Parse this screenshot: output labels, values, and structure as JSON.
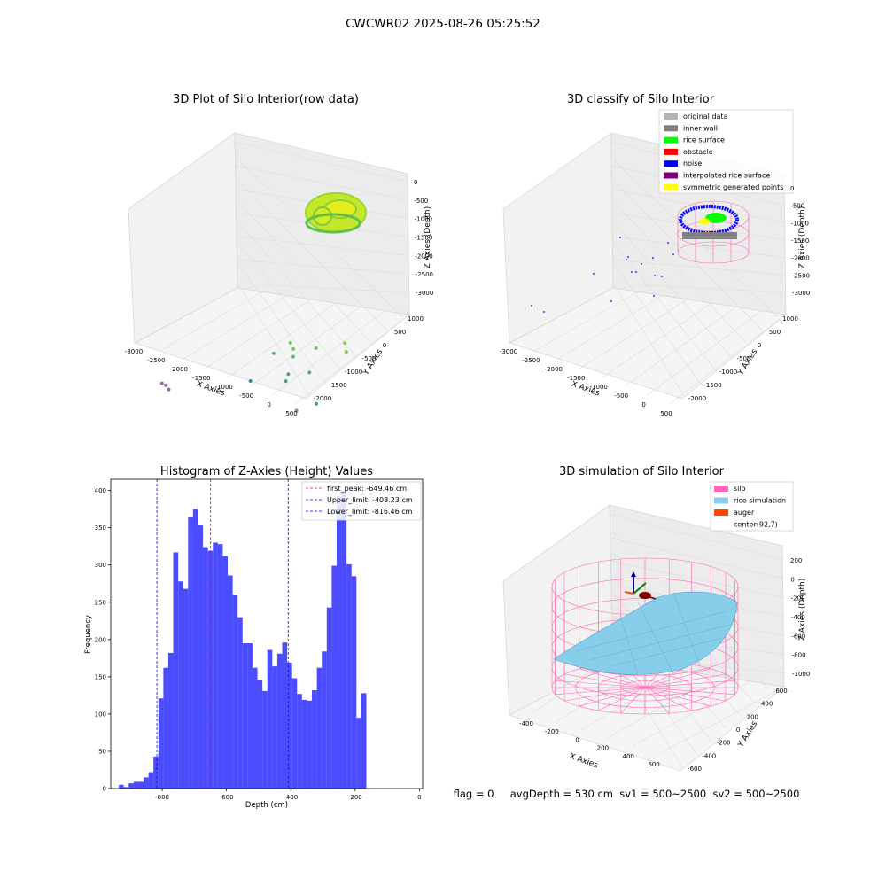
{
  "suptitle": "CWCWR02 2025-08-26 05:25:52",
  "status_line": "flag = 0     avgDepth = 530 cm  sv1 = 500~2500  sv2 = 500~2500",
  "chart_data": [
    {
      "type": "scatter3d",
      "title": "3D Plot of Silo Interior(row data)",
      "xlabel": "X Axies",
      "ylabel": "Y Axies",
      "zlabel": "Z Axies (Depth)",
      "xticks": [
        -3000,
        -2500,
        -2000,
        -1500,
        -1000,
        -500,
        0,
        500
      ],
      "yticks": [
        1000,
        500,
        0,
        -500,
        -1000,
        -1500,
        -2000
      ],
      "zticks": [
        0,
        -500,
        -1000,
        -1500,
        -2000,
        -2500,
        -3000
      ],
      "points": [
        {
          "x": -2800,
          "y": -1500,
          "z": -2800
        },
        {
          "x": -2750,
          "y": -1450,
          "z": -2850
        },
        {
          "x": -2650,
          "y": -1500,
          "z": -2900
        },
        {
          "x": -1600,
          "y": -400,
          "z": -2650
        },
        {
          "x": -1500,
          "y": 200,
          "z": -2100
        },
        {
          "x": -1200,
          "y": 300,
          "z": -1700
        },
        {
          "x": -1100,
          "y": 250,
          "z": -1800
        },
        {
          "x": -1000,
          "y": 100,
          "z": -1900
        },
        {
          "x": -900,
          "y": -200,
          "z": -2200
        },
        {
          "x": -850,
          "y": -350,
          "z": -2300
        },
        {
          "x": -700,
          "y": 400,
          "z": -1650
        },
        {
          "x": -500,
          "y": -100,
          "z": -2000
        },
        {
          "x": -200,
          "y": 600,
          "z": -1350
        },
        {
          "x": -100,
          "y": 500,
          "z": -1500
        },
        {
          "x": -300,
          "y": -800,
          "z": -2650
        },
        {
          "x": 0,
          "y": -600,
          "z": -2400
        }
      ]
    },
    {
      "type": "scatter3d",
      "title": "3D classify of Silo Interior",
      "xlabel": "X Axies",
      "ylabel": "Y Axies",
      "zlabel": "Z Axies (Depth)",
      "xticks": [
        -3000,
        -2500,
        -2000,
        -1500,
        -1000,
        -500,
        0,
        500
      ],
      "yticks": [
        1000,
        500,
        0,
        -500,
        -1000,
        -1500,
        -2000
      ],
      "zticks": [
        0,
        -500,
        -1000,
        -1500,
        -2000,
        -2500,
        -3000
      ],
      "legend": [
        {
          "label": "original data",
          "color": "#b3b3b3"
        },
        {
          "label": "inner wall",
          "color": "#808080"
        },
        {
          "label": "rice surface",
          "color": "#00ff00"
        },
        {
          "label": "obstacle",
          "color": "#ff0000"
        },
        {
          "label": "noise",
          "color": "#0000ff"
        },
        {
          "label": "interpolated rice surface",
          "color": "#800080"
        },
        {
          "label": "symmetric generated points",
          "color": "#ffff00"
        }
      ]
    },
    {
      "type": "histogram",
      "title": "Histogram of Z-Axies (Height) Values",
      "xlabel": "Depth (cm)",
      "ylabel": "Frequency",
      "xlim": [
        -960,
        10
      ],
      "ylim": [
        0,
        415
      ],
      "xticks": [
        -800,
        -600,
        -400,
        -200,
        0
      ],
      "yticks": [
        0,
        50,
        100,
        150,
        200,
        250,
        300,
        350,
        400
      ],
      "bin_start": -935,
      "bin_width": 15.4,
      "counts": [
        5,
        2,
        7,
        9,
        9,
        15,
        22,
        43,
        121,
        162,
        182,
        317,
        278,
        268,
        364,
        375,
        354,
        324,
        319,
        330,
        328,
        312,
        286,
        260,
        230,
        195,
        195,
        162,
        146,
        131,
        186,
        164,
        181,
        196,
        169,
        148,
        127,
        119,
        118,
        132,
        162,
        184,
        243,
        299,
        392,
        399,
        301,
        285,
        95,
        128
      ],
      "bar_color": "#0000ff",
      "lines": [
        {
          "label": "first_peak: -649.46 cm",
          "x": -649.46,
          "color": "#ff0000"
        },
        {
          "label": "Upper_limit: -408.23 cm",
          "x": -408.23,
          "color": "#0000ff"
        },
        {
          "label": "Lower_limit: -816.46 cm",
          "x": -816.46,
          "color": "#0000ff"
        }
      ]
    },
    {
      "type": "surface3d",
      "title": "3D simulation of Silo Interior",
      "xlabel": "X Axies",
      "ylabel": "Y Axies",
      "zlabel": "Z Axies (Depth)",
      "xticks": [
        -400,
        -200,
        0,
        200,
        400,
        600
      ],
      "yticks": [
        600,
        400,
        200,
        0,
        -200,
        -400,
        -600
      ],
      "zticks": [
        200,
        0,
        -200,
        -400,
        -600,
        -800,
        -1000
      ],
      "legend": [
        {
          "label": "silo",
          "color": "#ff69b4"
        },
        {
          "label": "rice simulation",
          "color": "#87ceeb"
        },
        {
          "label": "auger",
          "color": "#ff4500"
        },
        {
          "label": "center(92,7)",
          "color": ""
        }
      ]
    }
  ]
}
